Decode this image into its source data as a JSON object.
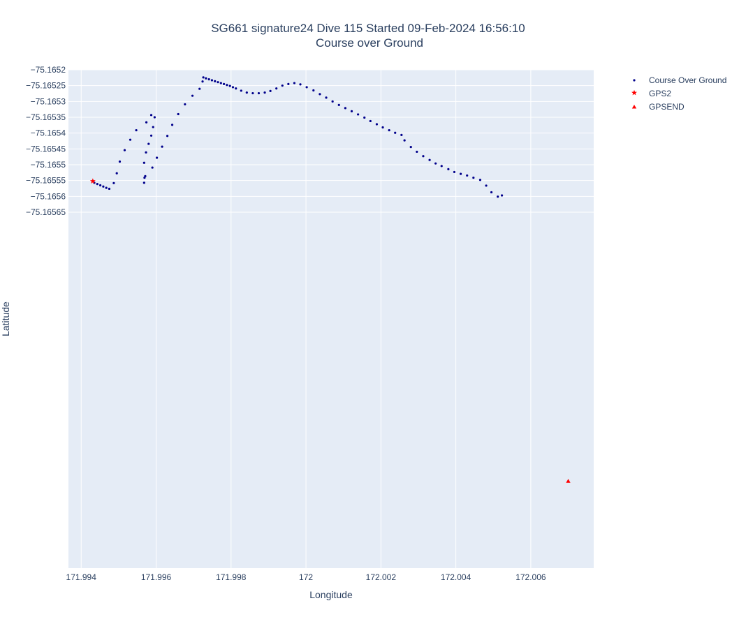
{
  "chart_data": {
    "type": "scatter",
    "title_line1": "SG661 signature24 Dive 115 Started 09-Feb-2024 16:56:10",
    "title_line2": "Course over Ground",
    "xlabel": "Longitude",
    "ylabel": "Latitude",
    "xlim": [
      171.99366,
      172.00768
    ],
    "ylim": [
      -75.166775,
      -75.1652
    ],
    "xticks": [
      171.994,
      171.996,
      171.998,
      172.0,
      172.002,
      172.004,
      172.006
    ],
    "xtick_labels": [
      "171.994",
      "171.996",
      "171.998",
      "172",
      "172.002",
      "172.004",
      "172.006"
    ],
    "yticks": [
      -75.1652,
      -75.16525,
      -75.1653,
      -75.16535,
      -75.1654,
      -75.16545,
      -75.1655,
      -75.16555,
      -75.1656,
      -75.16565
    ],
    "ytick_labels": [
      "−75.1652",
      "−75.16525",
      "−75.1653",
      "−75.16535",
      "−75.1654",
      "−75.16545",
      "−75.1655",
      "−75.16555",
      "−75.1656",
      "−75.16565"
    ],
    "grid": true,
    "legend_position": "top-right",
    "background_color": "#e5ecf6",
    "series": [
      {
        "name": "Course Over Ground",
        "marker": "dot",
        "color": "#00008b",
        "points": [
          [
            171.99435,
            -75.165557
          ],
          [
            171.99443,
            -75.165561
          ],
          [
            171.99451,
            -75.165565
          ],
          [
            171.99459,
            -75.165569
          ],
          [
            171.99467,
            -75.165573
          ],
          [
            171.99475,
            -75.165576
          ],
          [
            171.99487,
            -75.165558
          ],
          [
            171.99495,
            -75.165527
          ],
          [
            171.99503,
            -75.16549
          ],
          [
            171.99516,
            -75.165454
          ],
          [
            171.99531,
            -75.165421
          ],
          [
            171.99547,
            -75.165391
          ],
          [
            171.99574,
            -75.165366
          ],
          [
            171.99587,
            -75.165343
          ],
          [
            171.99596,
            -75.16535
          ],
          [
            171.99592,
            -75.165381
          ],
          [
            171.99587,
            -75.165408
          ],
          [
            171.9958,
            -75.165434
          ],
          [
            171.99573,
            -75.165461
          ],
          [
            171.99568,
            -75.165494
          ],
          [
            171.9959,
            -75.165509
          ],
          [
            171.99571,
            -75.165536
          ],
          [
            171.99569,
            -75.165541
          ],
          [
            171.99568,
            -75.165557
          ],
          [
            171.99602,
            -75.165478
          ],
          [
            171.99616,
            -75.165443
          ],
          [
            171.9963,
            -75.165409
          ],
          [
            171.99643,
            -75.165374
          ],
          [
            171.99659,
            -75.16534
          ],
          [
            171.99677,
            -75.165309
          ],
          [
            171.99697,
            -75.165282
          ],
          [
            171.99716,
            -75.16526
          ],
          [
            171.99724,
            -75.165237
          ],
          [
            171.99726,
            -75.165224
          ],
          [
            171.99733,
            -75.165227
          ],
          [
            171.99741,
            -75.16523
          ],
          [
            171.99749,
            -75.165233
          ],
          [
            171.99757,
            -75.165236
          ],
          [
            171.99765,
            -75.165239
          ],
          [
            171.99773,
            -75.165242
          ],
          [
            171.99781,
            -75.165245
          ],
          [
            171.99789,
            -75.165248
          ],
          [
            171.99797,
            -75.165251
          ],
          [
            171.99805,
            -75.165255
          ],
          [
            171.99813,
            -75.165259
          ],
          [
            171.99827,
            -75.165266
          ],
          [
            171.99842,
            -75.165272
          ],
          [
            171.99858,
            -75.165274
          ],
          [
            171.99874,
            -75.165274
          ],
          [
            171.9989,
            -75.165272
          ],
          [
            171.99905,
            -75.165267
          ],
          [
            171.99921,
            -75.165259
          ],
          [
            171.99937,
            -75.16525
          ],
          [
            171.99953,
            -75.165245
          ],
          [
            171.99969,
            -75.165242
          ],
          [
            171.99985,
            -75.165246
          ],
          [
            172.00002,
            -75.165255
          ],
          [
            172.0002,
            -75.165265
          ],
          [
            172.00037,
            -75.165277
          ],
          [
            172.00054,
            -75.165288
          ],
          [
            172.00071,
            -75.1653
          ],
          [
            172.00088,
            -75.165311
          ],
          [
            172.00105,
            -75.165321
          ],
          [
            172.00122,
            -75.165331
          ],
          [
            172.00139,
            -75.165341
          ],
          [
            172.00156,
            -75.165351
          ],
          [
            172.00172,
            -75.165362
          ],
          [
            172.00189,
            -75.165372
          ],
          [
            172.00205,
            -75.165382
          ],
          [
            172.00222,
            -75.165391
          ],
          [
            172.00238,
            -75.165399
          ],
          [
            172.00255,
            -75.165406
          ],
          [
            172.00263,
            -75.165423
          ],
          [
            172.0028,
            -75.165444
          ],
          [
            172.00296,
            -75.165459
          ],
          [
            172.00313,
            -75.165473
          ],
          [
            172.0033,
            -75.165485
          ],
          [
            172.00346,
            -75.165496
          ],
          [
            172.00362,
            -75.165504
          ],
          [
            172.0038,
            -75.165514
          ],
          [
            172.00396,
            -75.165523
          ],
          [
            172.00413,
            -75.165529
          ],
          [
            172.0043,
            -75.165534
          ],
          [
            172.00447,
            -75.165541
          ],
          [
            172.00465,
            -75.165548
          ],
          [
            172.00481,
            -75.165566
          ],
          [
            172.00495,
            -75.165587
          ],
          [
            172.00512,
            -75.165601
          ],
          [
            172.00523,
            -75.165597
          ]
        ]
      },
      {
        "name": "GPS2",
        "marker": "star",
        "color": "#ff0000",
        "points": [
          [
            171.99431,
            -75.165552
          ]
        ]
      },
      {
        "name": "GPSEND",
        "marker": "triangle-up",
        "color": "#ff0000",
        "points": [
          [
            172.007,
            -75.1665
          ]
        ]
      }
    ]
  }
}
